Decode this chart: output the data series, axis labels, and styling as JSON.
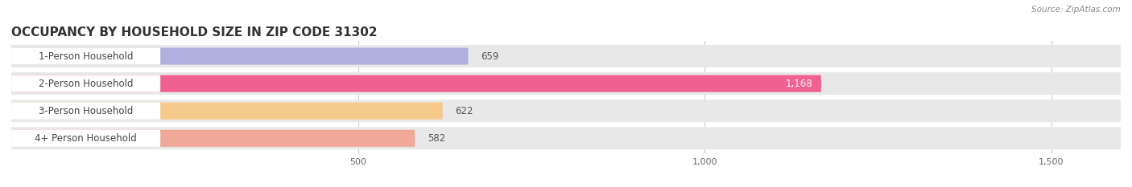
{
  "title": "OCCUPANCY BY HOUSEHOLD SIZE IN ZIP CODE 31302",
  "source": "Source: ZipAtlas.com",
  "categories": [
    "1-Person Household",
    "2-Person Household",
    "3-Person Household",
    "4+ Person Household"
  ],
  "values": [
    659,
    1168,
    622,
    582
  ],
  "bar_colors": [
    "#b0b0de",
    "#f06090",
    "#f5c98a",
    "#f0a898"
  ],
  "row_bg_color": "#e8e8e8",
  "xlim_max": 1600,
  "xticks": [
    500,
    1000,
    1500
  ],
  "xtick_labels": [
    "500",
    "1,000",
    "1,500"
  ],
  "label_fontsize": 8.5,
  "title_fontsize": 11,
  "value_color_inside": "#ffffff",
  "value_color_outside": "#555555",
  "background_color": "#ffffff",
  "white_label_bg": "#ffffff",
  "label_text_color": "#444444",
  "source_color": "#888888"
}
